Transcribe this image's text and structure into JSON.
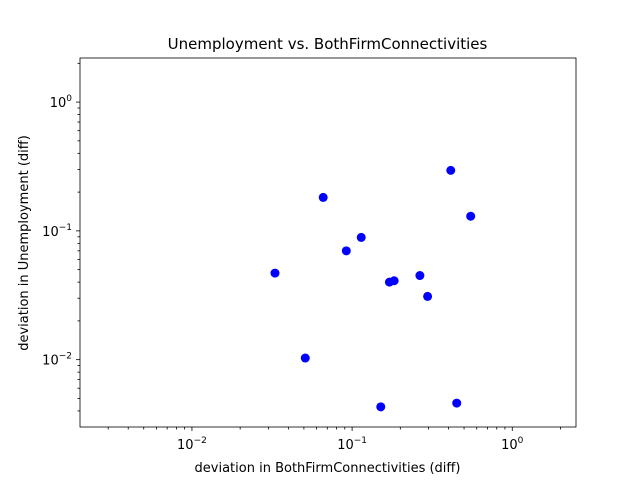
{
  "chart_data": {
    "type": "scatter",
    "title": "Unemployment vs. BothFirmConnectivities",
    "xlabel": "deviation in BothFirmConnectivities (diff)",
    "ylabel": "deviation in Unemployment (diff)",
    "xscale": "log",
    "yscale": "log",
    "xlim": [
      0.002,
      2.5
    ],
    "ylim": [
      0.003,
      2.2
    ],
    "xticks": [
      {
        "value": 0.01,
        "base": "10",
        "exp": "−2"
      },
      {
        "value": 0.1,
        "base": "10",
        "exp": "−1"
      },
      {
        "value": 1,
        "base": "10",
        "exp": "0"
      }
    ],
    "yticks": [
      {
        "value": 0.01,
        "base": "10",
        "exp": "−2"
      },
      {
        "value": 0.1,
        "base": "10",
        "exp": "−1"
      },
      {
        "value": 1,
        "base": "10",
        "exp": "0"
      }
    ],
    "grid": false,
    "marker_color": "#0000ff",
    "points": [
      {
        "x": 0.033,
        "y": 0.047
      },
      {
        "x": 0.051,
        "y": 0.0103
      },
      {
        "x": 0.066,
        "y": 0.182
      },
      {
        "x": 0.092,
        "y": 0.07
      },
      {
        "x": 0.114,
        "y": 0.089
      },
      {
        "x": 0.151,
        "y": 0.0043
      },
      {
        "x": 0.171,
        "y": 0.04
      },
      {
        "x": 0.183,
        "y": 0.041
      },
      {
        "x": 0.265,
        "y": 0.045
      },
      {
        "x": 0.296,
        "y": 0.031
      },
      {
        "x": 0.413,
        "y": 0.295
      },
      {
        "x": 0.45,
        "y": 0.0046
      },
      {
        "x": 0.55,
        "y": 0.13
      }
    ]
  }
}
